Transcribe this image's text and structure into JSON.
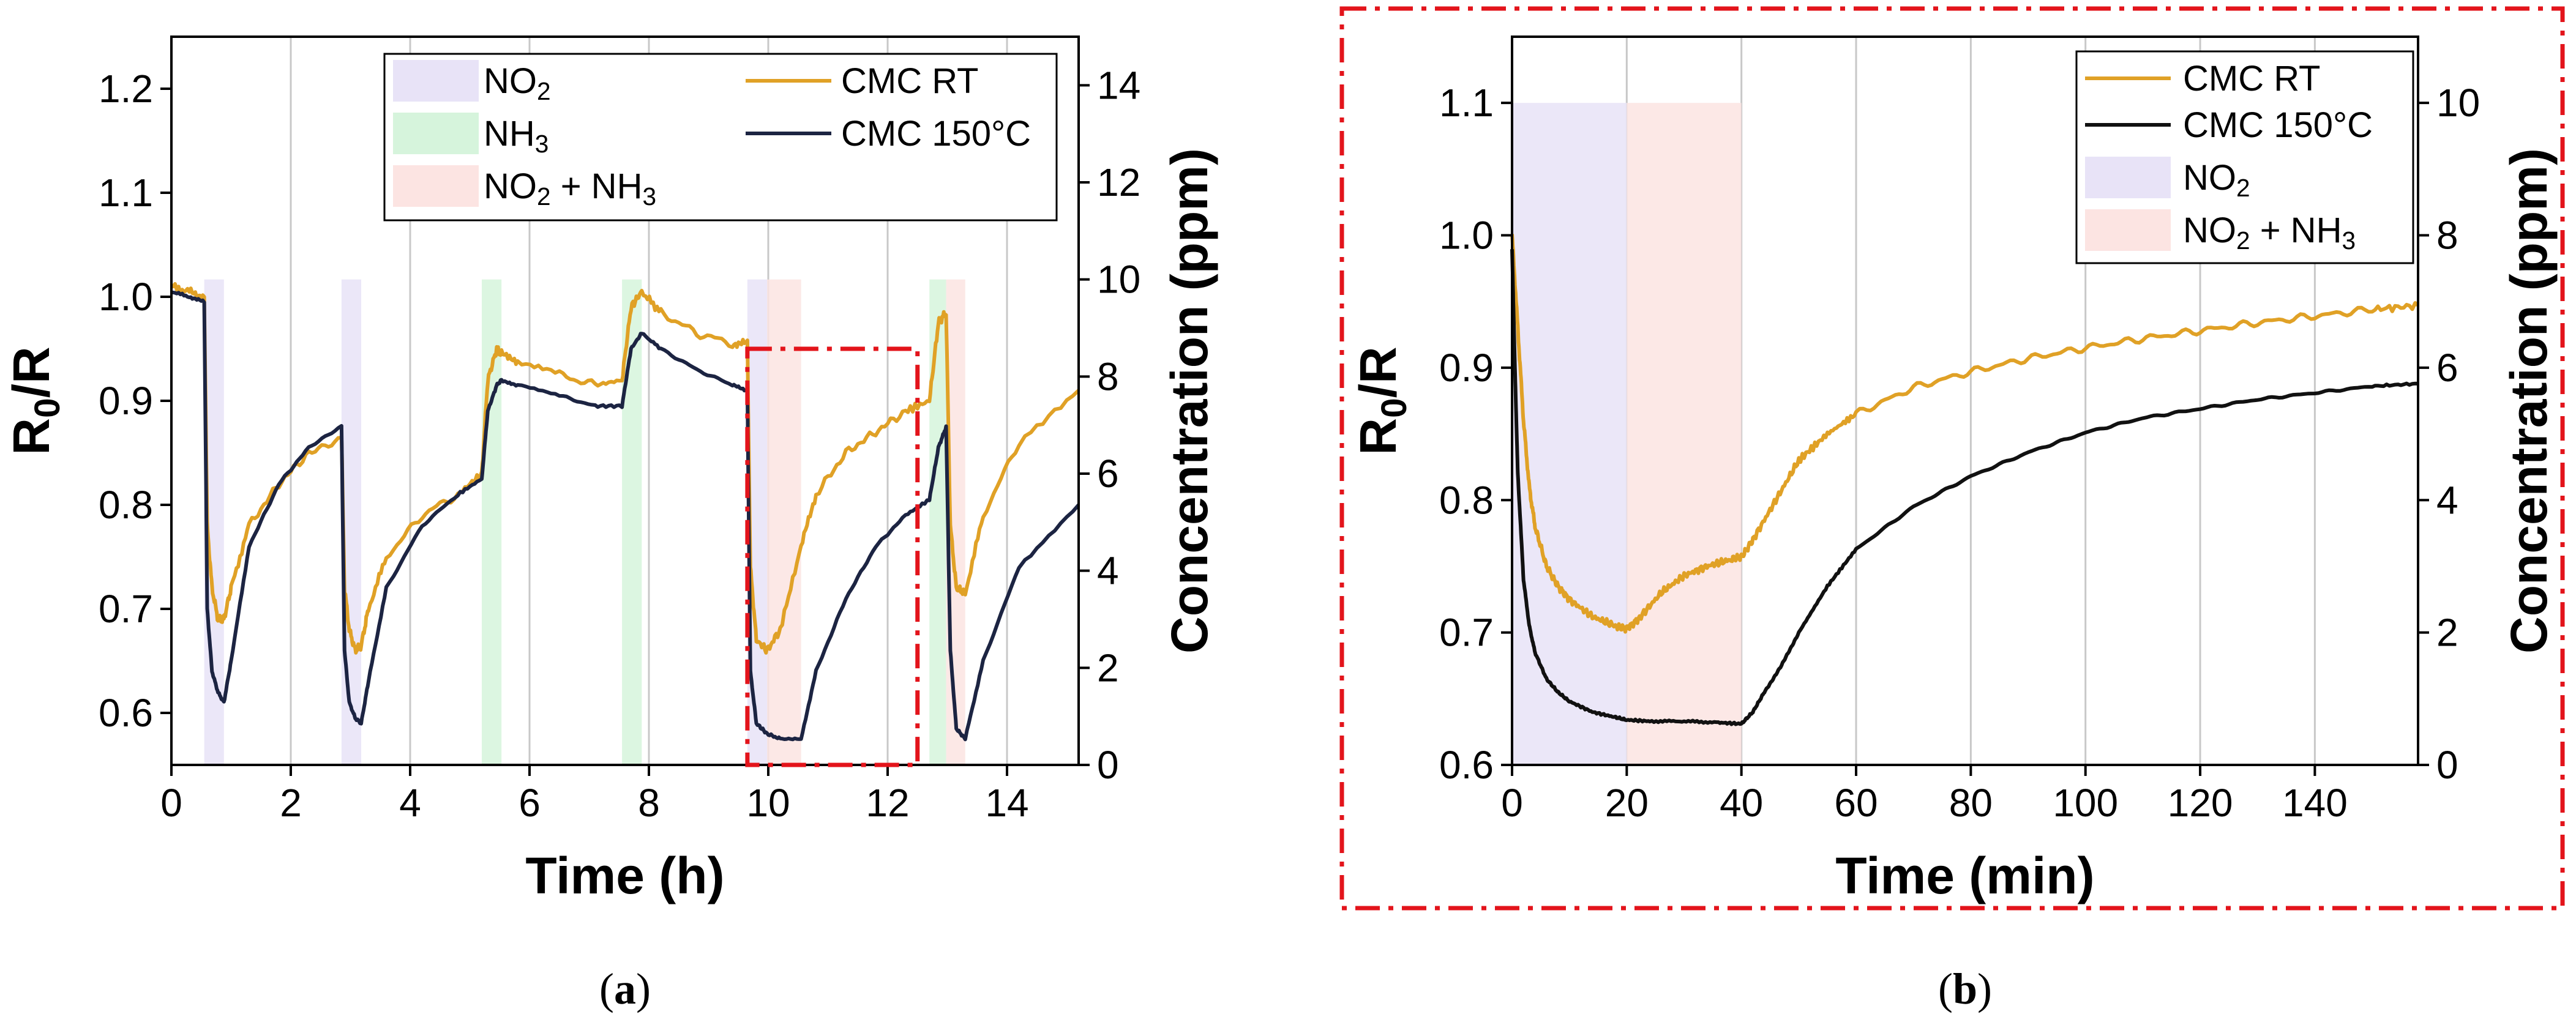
{
  "colors": {
    "rt": "#E0A126",
    "hot_a": "#1C2442",
    "hot_b": "#111111",
    "no2": "#E8E3F7",
    "nh3": "#D6F4DC",
    "mix": "#FCE4E2",
    "box": "#E3141B",
    "grid": "#C8C8C8"
  },
  "chart_data": [
    {
      "panel": "a",
      "type": "line",
      "caption_letter": "a",
      "xlabel": "Time (h)",
      "ylabel": "R0/R",
      "ylabel_base": "R",
      "ylabel_sub": "0",
      "ylabel_tail": "/R",
      "y2label": "Concentration (ppm)",
      "xlim": [
        0,
        15.2
      ],
      "ylim": [
        0.55,
        1.25
      ],
      "y2lim": [
        0,
        15
      ],
      "xticks": [
        0,
        2,
        4,
        6,
        8,
        10,
        12,
        14
      ],
      "yticks": [
        0.6,
        0.7,
        0.8,
        0.9,
        1.0,
        1.1,
        1.2
      ],
      "y2ticks": [
        0,
        2,
        4,
        6,
        8,
        10,
        12,
        14
      ],
      "legend": {
        "placement": "top",
        "no2": {
          "base": "NO",
          "sub": "2"
        },
        "nh3": {
          "base": "NH",
          "sub": "3"
        },
        "mix": {
          "a": "NO",
          "asub": "2",
          "b": " + NH",
          "bsub": "3"
        },
        "rt": "CMC RT",
        "hot": "CMC 150°C"
      },
      "zoom_box": {
        "x": [
          9.65,
          12.5
        ],
        "y": [
          0.55,
          0.95
        ]
      },
      "exposures": [
        {
          "gas": "no2",
          "start": 0.55,
          "end": 0.88,
          "ppm": 10
        },
        {
          "gas": "no2",
          "start": 2.85,
          "end": 3.18,
          "ppm": 10
        },
        {
          "gas": "nh3",
          "start": 5.2,
          "end": 5.53,
          "ppm": 10
        },
        {
          "gas": "nh3",
          "start": 7.55,
          "end": 7.88,
          "ppm": 10
        },
        {
          "gas": "no2",
          "start": 9.65,
          "end": 9.98,
          "ppm": 10
        },
        {
          "gas": "mix",
          "start": 9.98,
          "end": 10.55,
          "ppm": 10
        },
        {
          "gas": "nh3",
          "start": 12.7,
          "end": 12.98,
          "ppm": 10
        },
        {
          "gas": "mix",
          "start": 12.98,
          "end": 13.3,
          "ppm": 10
        }
      ],
      "series": [
        {
          "name": "CMC RT",
          "key": "rt",
          "x": [
            0,
            0.3,
            0.55,
            0.6,
            0.68,
            0.78,
            0.88,
            1.0,
            1.3,
            1.8,
            2.3,
            2.85,
            2.9,
            2.98,
            3.08,
            3.18,
            3.3,
            3.6,
            4.2,
            4.8,
            5.2,
            5.3,
            5.45,
            5.53,
            5.8,
            6.5,
            7.1,
            7.55,
            7.7,
            7.88,
            8.2,
            8.8,
            9.4,
            9.65,
            9.7,
            9.8,
            9.98,
            10.2,
            10.55,
            10.8,
            11.3,
            11.8,
            12.3,
            12.7,
            12.85,
            12.98,
            13.05,
            13.15,
            13.3,
            13.6,
            14.2,
            15.2
          ],
          "y": [
            1.01,
            1.005,
            1.0,
            0.78,
            0.72,
            0.69,
            0.69,
            0.72,
            0.78,
            0.82,
            0.85,
            0.865,
            0.72,
            0.68,
            0.66,
            0.665,
            0.7,
            0.75,
            0.79,
            0.81,
            0.83,
            0.92,
            0.95,
            0.945,
            0.935,
            0.925,
            0.915,
            0.92,
            0.99,
            1.005,
            0.985,
            0.965,
            0.955,
            0.955,
            0.74,
            0.67,
            0.66,
            0.68,
            0.76,
            0.81,
            0.85,
            0.87,
            0.89,
            0.9,
            0.975,
            0.985,
            0.78,
            0.72,
            0.715,
            0.79,
            0.86,
            0.91
          ]
        },
        {
          "name": "CMC 150°C",
          "key": "hot",
          "x": [
            0,
            0.3,
            0.55,
            0.6,
            0.68,
            0.78,
            0.88,
            1.0,
            1.3,
            1.8,
            2.3,
            2.85,
            2.9,
            2.98,
            3.08,
            3.18,
            3.3,
            3.6,
            4.2,
            4.8,
            5.2,
            5.3,
            5.45,
            5.53,
            5.8,
            6.5,
            7.1,
            7.55,
            7.7,
            7.88,
            8.2,
            8.8,
            9.4,
            9.65,
            9.7,
            9.8,
            9.98,
            10.2,
            10.55,
            10.8,
            11.3,
            11.8,
            12.3,
            12.7,
            12.85,
            12.98,
            13.05,
            13.15,
            13.3,
            13.6,
            14.2,
            15.2
          ],
          "y": [
            1.005,
            1.0,
            0.995,
            0.7,
            0.64,
            0.62,
            0.61,
            0.65,
            0.76,
            0.82,
            0.855,
            0.875,
            0.66,
            0.61,
            0.595,
            0.59,
            0.63,
            0.72,
            0.78,
            0.81,
            0.825,
            0.89,
            0.915,
            0.92,
            0.915,
            0.905,
            0.895,
            0.895,
            0.95,
            0.965,
            0.95,
            0.93,
            0.915,
            0.91,
            0.64,
            0.59,
            0.58,
            0.575,
            0.575,
            0.64,
            0.71,
            0.76,
            0.79,
            0.805,
            0.855,
            0.875,
            0.66,
            0.585,
            0.575,
            0.65,
            0.74,
            0.8
          ]
        }
      ]
    },
    {
      "panel": "b",
      "type": "line",
      "caption_letter": "b",
      "xlabel": "Time (min)",
      "ylabel": "R0/R",
      "ylabel_base": "R",
      "ylabel_sub": "0",
      "ylabel_tail": "/R",
      "y2label": "Concentration (ppm)",
      "xlim": [
        0,
        158
      ],
      "ylim": [
        0.6,
        1.15
      ],
      "y2lim": [
        0,
        11
      ],
      "xticks": [
        0,
        20,
        40,
        60,
        80,
        100,
        120,
        140
      ],
      "yticks": [
        0.6,
        0.7,
        0.8,
        0.9,
        1.0,
        1.1
      ],
      "y2ticks": [
        0,
        2,
        4,
        6,
        8,
        10
      ],
      "legend": {
        "placement": "top-right",
        "rt": "CMC RT",
        "hot": "CMC 150°C",
        "no2": {
          "base": "NO",
          "sub": "2"
        },
        "mix": {
          "a": "NO",
          "asub": "2",
          "b": " + NH",
          "bsub": "3"
        }
      },
      "exposures": [
        {
          "gas": "no2",
          "start": 0,
          "end": 20,
          "ppm": 10
        },
        {
          "gas": "mix",
          "start": 20,
          "end": 40,
          "ppm": 10
        }
      ],
      "series": [
        {
          "name": "CMC RT",
          "key": "rt",
          "x": [
            0,
            1,
            2,
            3,
            4,
            6,
            8,
            10,
            14,
            18,
            20,
            22,
            26,
            30,
            34,
            38,
            40,
            42,
            46,
            50,
            55,
            60,
            70,
            80,
            90,
            100,
            110,
            120,
            130,
            140,
            150,
            158
          ],
          "y": [
            1.0,
            0.93,
            0.86,
            0.81,
            0.78,
            0.75,
            0.735,
            0.725,
            0.712,
            0.705,
            0.703,
            0.71,
            0.73,
            0.743,
            0.75,
            0.755,
            0.757,
            0.77,
            0.8,
            0.83,
            0.85,
            0.865,
            0.885,
            0.897,
            0.907,
            0.915,
            0.922,
            0.928,
            0.934,
            0.939,
            0.944,
            0.947
          ]
        },
        {
          "name": "CMC 150°C",
          "key": "hot",
          "x": [
            0,
            0.5,
            1,
            2,
            3,
            4,
            6,
            8,
            10,
            14,
            18,
            20,
            24,
            30,
            36,
            40,
            42,
            44,
            47,
            50,
            55,
            60,
            70,
            80,
            90,
            100,
            110,
            120,
            130,
            140,
            150,
            158
          ],
          "y": [
            0.99,
            0.9,
            0.82,
            0.74,
            0.705,
            0.685,
            0.665,
            0.655,
            0.648,
            0.64,
            0.636,
            0.634,
            0.633,
            0.633,
            0.632,
            0.631,
            0.64,
            0.655,
            0.675,
            0.7,
            0.735,
            0.763,
            0.795,
            0.818,
            0.836,
            0.851,
            0.862,
            0.869,
            0.876,
            0.881,
            0.886,
            0.888
          ]
        }
      ]
    }
  ]
}
